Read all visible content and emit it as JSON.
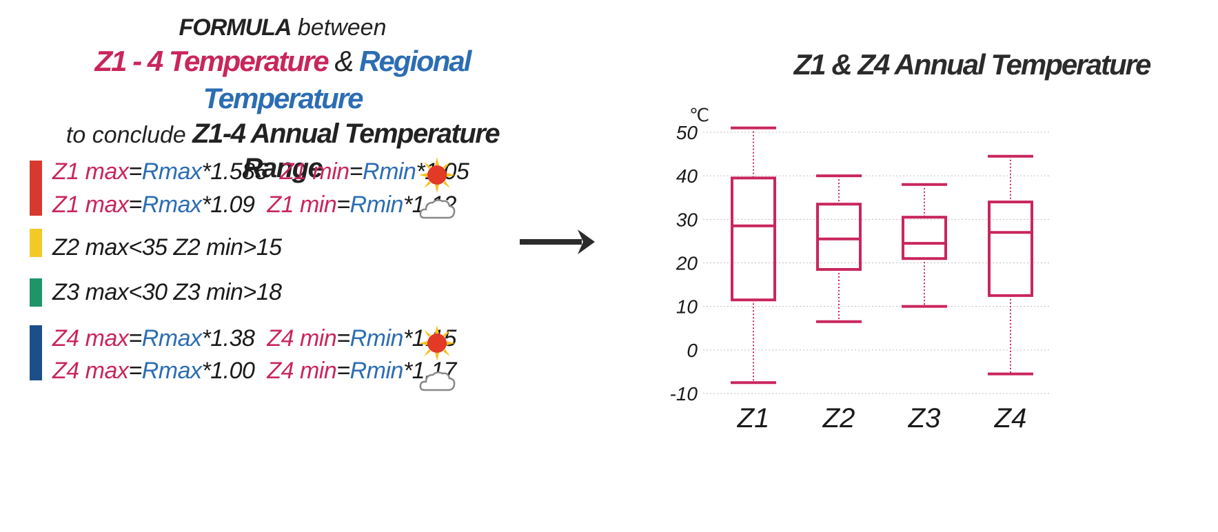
{
  "header": {
    "line1_bold": "FORMULA",
    "line1_rest": " between",
    "line2_a": "Z1 - 4 Temperature",
    "line2_amp": " & ",
    "line2_b": "Regional Temperature",
    "line3_a": "to conclude ",
    "line3_b": "Z1-4 Annual Temperature Range"
  },
  "formulas": [
    {
      "zone": "Z1",
      "bar_color": "#d63a2f",
      "rows": [
        {
          "a": "Z1 max",
          "eq1": "=",
          "b": "Rmax",
          "c": "*1.585",
          "d": "Z1 min",
          "eq2": "=",
          "e": "Rmin",
          "f": "*1.05",
          "icon": "sun-icon"
        },
        {
          "a": "Z1 max",
          "eq1": "=",
          "b": "Rmax",
          "c": "*1.09",
          "d": "Z1 min",
          "eq2": "=",
          "e": "Rmin",
          "f": "*1.12",
          "icon": "cloud-icon"
        }
      ]
    },
    {
      "zone": "Z2",
      "bar_color": "#f3c928",
      "text": "Z2 max<35  Z2 min>15"
    },
    {
      "zone": "Z3",
      "bar_color": "#1f9468",
      "text": "Z3 max<30  Z3 min>18"
    },
    {
      "zone": "Z4",
      "bar_color": "#1b4f8a",
      "rows": [
        {
          "a": "Z4 max",
          "eq1": "=",
          "b": "Rmax",
          "c": "*1.38",
          "d": "Z4 min",
          "eq2": "=",
          "e": "Rmin",
          "f": "*1.15",
          "icon": "sun-icon"
        },
        {
          "a": "Z4 max",
          "eq1": "=",
          "b": "Rmax",
          "c": "*1.00",
          "d": "Z4 min",
          "eq2": "=",
          "e": "Rmin",
          "f": "*1.17",
          "icon": "cloud-icon"
        }
      ]
    }
  ],
  "arrow_icon": "arrow-right-icon",
  "colors": {
    "magenta": "#c9265b",
    "blue": "#2c6db3",
    "sun": "#e33a26",
    "sun_rays": "#f6c21c",
    "cloud": "#888888"
  },
  "chart_data": {
    "type": "box",
    "title": "Z1 & Z4 Annual Temperature",
    "unit": "℃",
    "ylim": [
      -10,
      50
    ],
    "yticks": [
      -10,
      0,
      10,
      20,
      30,
      40,
      50
    ],
    "grid": true,
    "color": "#c9265b",
    "categories": [
      "Z1",
      "Z2",
      "Z3",
      "Z4"
    ],
    "boxes": [
      {
        "name": "Z1",
        "whisker_low": -7.5,
        "q1": 11.5,
        "median": 28.5,
        "q3": 39.5,
        "whisker_high": 51.0
      },
      {
        "name": "Z2",
        "whisker_low": 6.5,
        "q1": 18.5,
        "median": 25.5,
        "q3": 33.5,
        "whisker_high": 40.0
      },
      {
        "name": "Z3",
        "whisker_low": 10.0,
        "q1": 21.0,
        "median": 24.5,
        "q3": 30.5,
        "whisker_high": 38.0
      },
      {
        "name": "Z4",
        "whisker_low": -5.5,
        "q1": 12.5,
        "median": 27.0,
        "q3": 34.0,
        "whisker_high": 44.5
      }
    ]
  }
}
